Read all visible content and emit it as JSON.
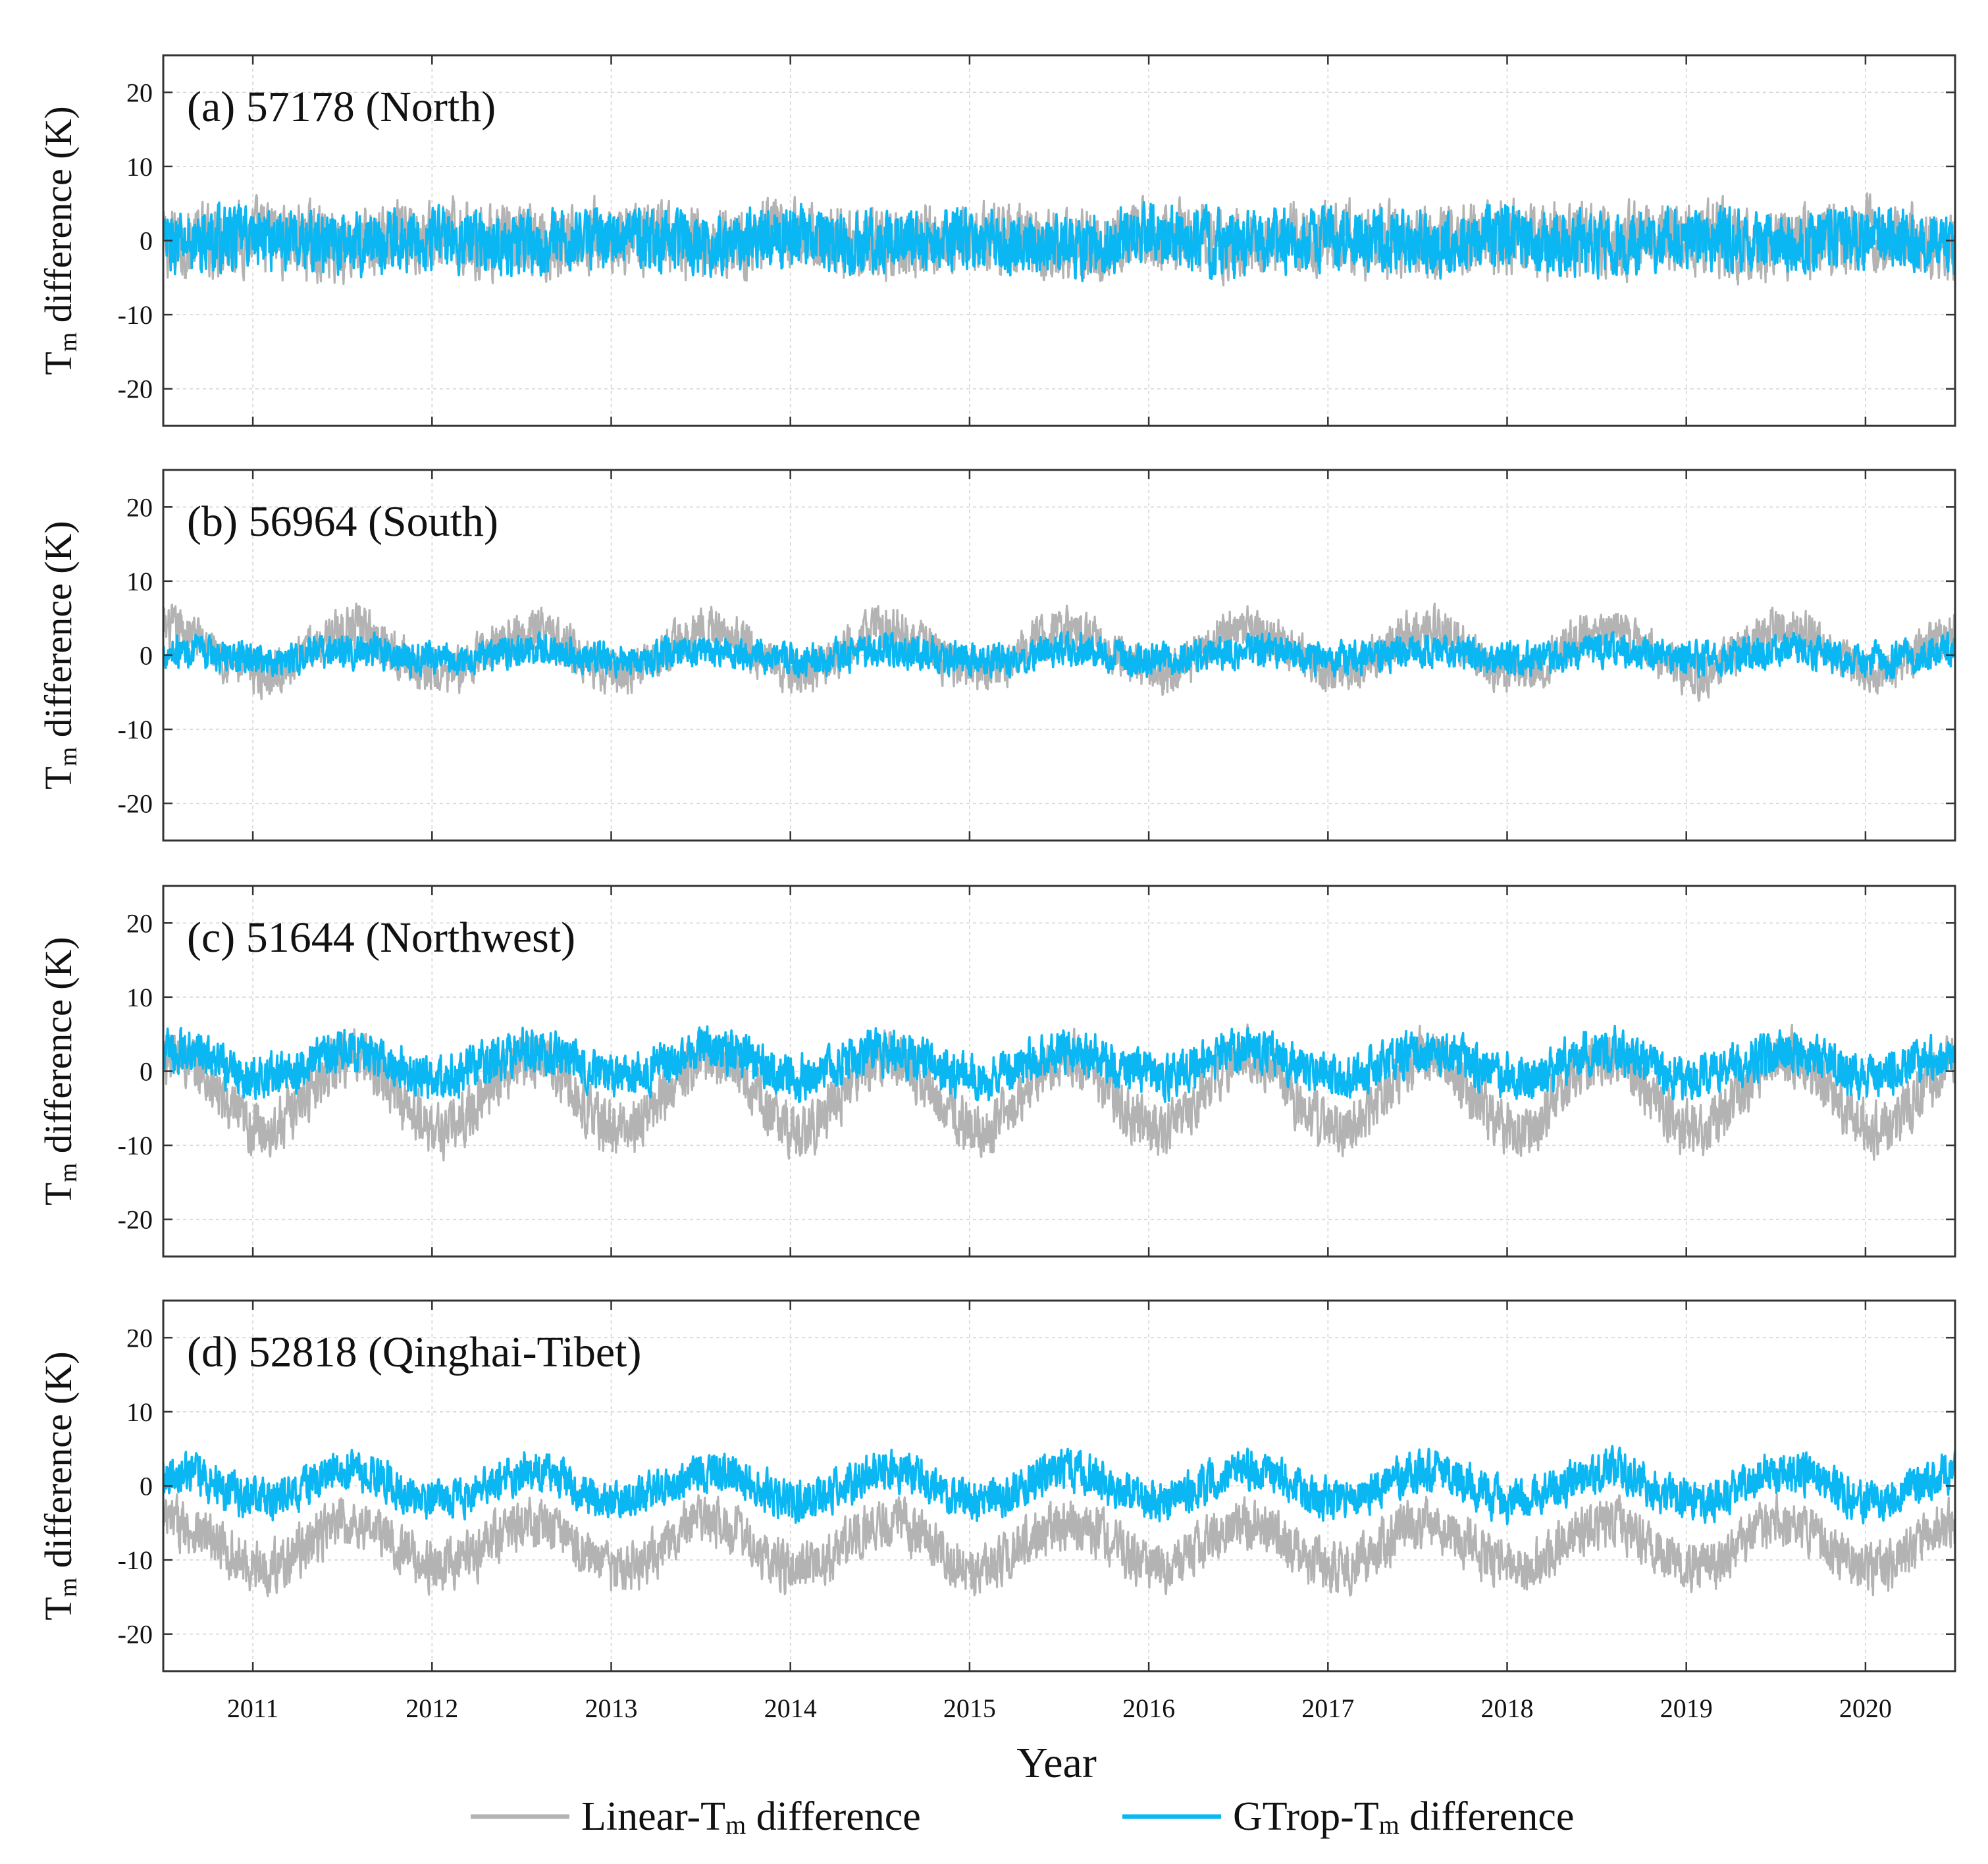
{
  "chart_data": {
    "type": "line",
    "xlabel": "Year",
    "x_ticks": [
      "2011",
      "2012",
      "2013",
      "2014",
      "2015",
      "2016",
      "2017",
      "2018",
      "2019",
      "2020"
    ],
    "x_tick_values": [
      2011,
      2012,
      2013,
      2014,
      2015,
      2016,
      2017,
      2018,
      2019,
      2020
    ],
    "xlim": [
      2010.5,
      2020.5
    ],
    "ylim": [
      -25,
      25
    ],
    "y_ticks": [
      "20",
      "10",
      "0",
      "-10",
      "-20"
    ],
    "y_tick_values": [
      20,
      10,
      0,
      -10,
      -20
    ],
    "ylabel": {
      "main": "T",
      "sub": "m",
      "rest": " difference (K)"
    },
    "legend": {
      "position": "bottom-center",
      "items": [
        {
          "prefix": "Linear-T",
          "sub": "m",
          "suffix": " difference",
          "color": "#b3b3b3"
        },
        {
          "prefix": "GTrop-T",
          "sub": "m",
          "suffix": " difference",
          "color": "#0ab7f2"
        }
      ]
    },
    "panels": [
      {
        "title": "(a) 57178 (North)",
        "series": [
          {
            "name": "Linear-Tm difference",
            "color": "#b3b3b3",
            "mean": 0.0,
            "amplitude": 0.5,
            "phase": 0.0,
            "noise": 4.2,
            "floor_spike": 10.5
          },
          {
            "name": "GTrop-Tm difference",
            "color": "#0ab7f2",
            "mean": 0.0,
            "amplitude": 0.5,
            "phase": 0.0,
            "noise": 3.6,
            "floor_spike": 8.5
          }
        ]
      },
      {
        "title": "(b) 56964 (South)",
        "series": [
          {
            "name": "Linear-Tm difference",
            "color": "#b3b3b3",
            "mean": 0.5,
            "amplitude": 3.0,
            "phase": 0.55,
            "noise": 2.6,
            "floor_spike": 12.5
          },
          {
            "name": "GTrop-Tm difference",
            "color": "#0ab7f2",
            "mean": 0.0,
            "amplitude": 0.6,
            "phase": 0.55,
            "noise": 1.9,
            "floor_spike": 5.0
          }
        ]
      },
      {
        "title": "(c) 51644 (Northwest)",
        "series": [
          {
            "name": "Linear-Tm difference",
            "color": "#b3b3b3",
            "mean": -3.0,
            "amplitude": 5.0,
            "phase": 0.55,
            "noise": 3.2,
            "floor_spike": 12.5
          },
          {
            "name": "GTrop-Tm difference",
            "color": "#0ab7f2",
            "mean": 1.0,
            "amplitude": 1.8,
            "phase": 0.55,
            "noise": 2.6,
            "floor_spike": 7.5
          }
        ]
      },
      {
        "title": "(d) 52818 (Qinghai-Tibet)",
        "series": [
          {
            "name": "Linear-Tm difference",
            "color": "#b3b3b3",
            "mean": -8.0,
            "amplitude": 3.0,
            "phase": 0.55,
            "noise": 3.0,
            "floor_spike": 19.0
          },
          {
            "name": "GTrop-Tm difference",
            "color": "#0ab7f2",
            "mean": 0.0,
            "amplitude": 2.0,
            "phase": 0.55,
            "noise": 2.4,
            "floor_spike": 7.5
          }
        ]
      }
    ]
  }
}
